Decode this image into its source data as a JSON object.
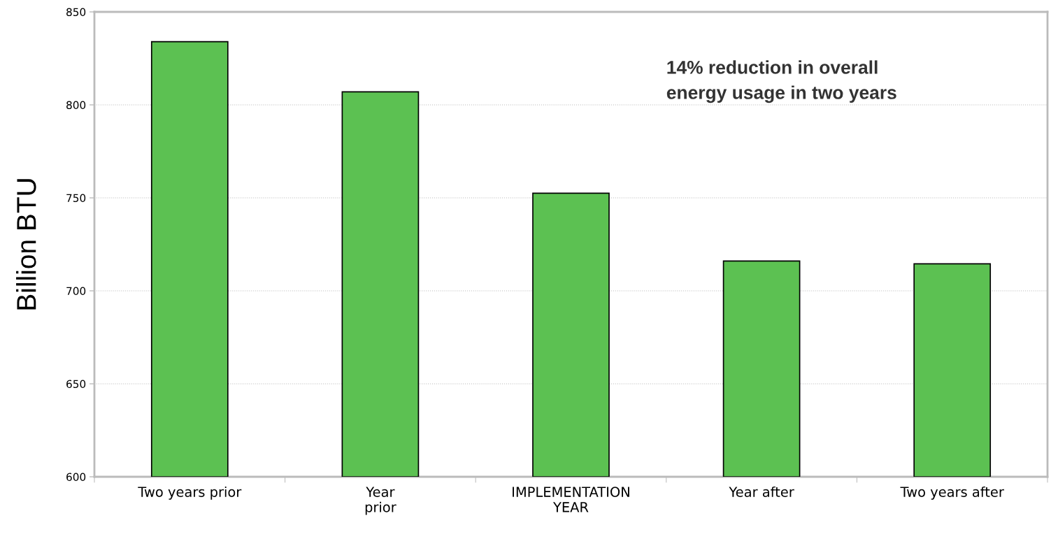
{
  "chart_data": {
    "type": "bar",
    "categories": [
      "Two years prior",
      "Year\nprior",
      "IMPLEMENTATION\nYEAR",
      "Year after",
      "Two years after"
    ],
    "values": [
      834,
      807,
      752.5,
      716,
      714.5
    ],
    "color": "#5cc152",
    "ylabel": "Billion BTU",
    "ylim": [
      600,
      850
    ],
    "yticks": [
      600,
      650,
      700,
      750,
      800,
      850
    ],
    "grid": "y",
    "annotations": [
      "14% reduction in overall\nenergy usage in two years"
    ]
  }
}
